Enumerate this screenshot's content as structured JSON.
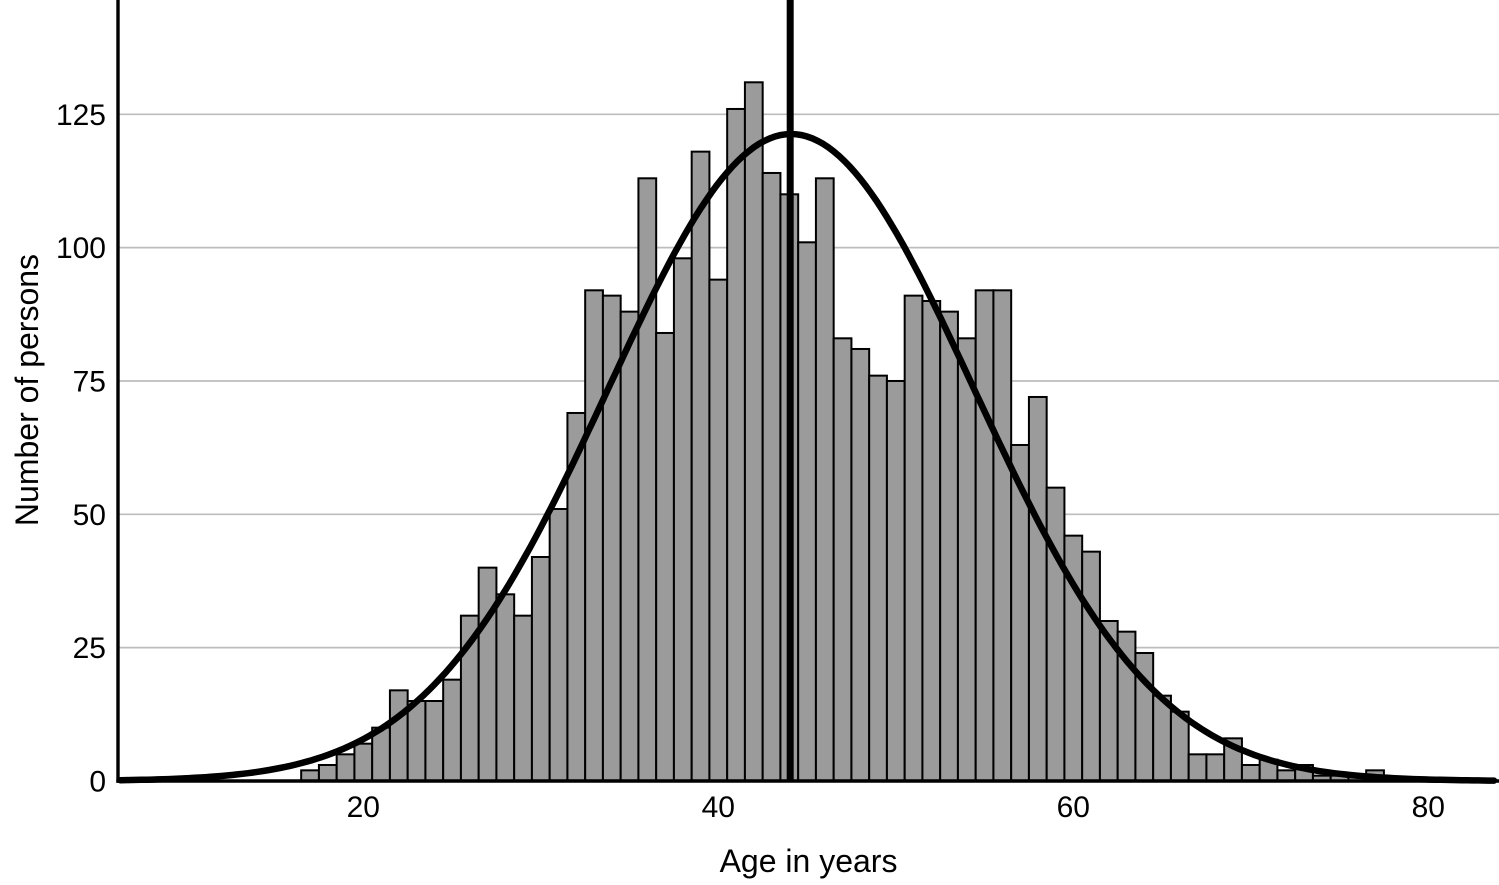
{
  "figure": {
    "background": "#ffffff"
  },
  "chart_data": {
    "type": "bar",
    "subtype": "histogram-with-normal-curve",
    "title": "",
    "xlabel": "Age in years",
    "ylabel": "Number of persons",
    "x_ticks": [
      20,
      40,
      60,
      80
    ],
    "y_ticks": [
      0,
      25,
      50,
      75,
      100,
      125
    ],
    "xlim": [
      6.2,
      84
    ],
    "ylim": [
      0,
      146.5
    ],
    "grid": "horizontal",
    "legend": "none",
    "bin_width_years": 1,
    "ages": [
      17,
      18,
      19,
      20,
      21,
      22,
      23,
      24,
      25,
      26,
      27,
      28,
      29,
      30,
      31,
      32,
      33,
      34,
      35,
      36,
      37,
      38,
      39,
      40,
      41,
      42,
      43,
      44,
      45,
      46,
      47,
      48,
      49,
      50,
      51,
      52,
      53,
      54,
      55,
      56,
      57,
      58,
      59,
      60,
      61,
      62,
      63,
      64,
      65,
      66,
      67,
      68,
      69,
      70,
      71,
      72,
      73,
      74,
      75,
      76,
      77
    ],
    "counts": [
      2,
      3,
      5,
      7,
      10,
      17,
      15,
      15,
      19,
      31,
      40,
      35,
      31,
      42,
      51,
      69,
      92,
      91,
      88,
      113,
      84,
      98,
      118,
      94,
      126,
      131,
      114,
      110,
      101,
      113,
      83,
      81,
      76,
      75,
      91,
      90,
      88,
      83,
      92,
      92,
      63,
      72,
      55,
      46,
      43,
      30,
      28,
      24,
      16,
      13,
      5,
      5,
      8,
      3,
      4,
      2,
      3,
      1,
      1,
      1,
      2
    ],
    "normal_curve": {
      "mean": 44.1,
      "sd": 10.3,
      "peak": 121.3
    },
    "mean_line_age": 44.05,
    "colors": {
      "bar_fill": "#9b9b9b",
      "bar_border": "#000000",
      "curve": "#000000",
      "mean_line": "#000000",
      "gridline": "#bdbdbd",
      "axis": "#000000",
      "text": "#000000"
    }
  }
}
